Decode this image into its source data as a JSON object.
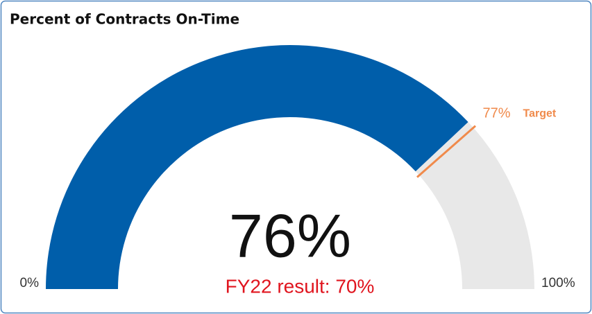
{
  "chart_data": {
    "type": "gauge",
    "title": "Percent of Contracts On-Time",
    "values": [
      76
    ],
    "value_labels": [
      "76%"
    ],
    "ylim": [
      0,
      100
    ],
    "yticks": [
      {
        "value": 0,
        "label": "0%"
      },
      {
        "value": 100,
        "label": "100%"
      }
    ],
    "target": 77,
    "target_label": "77%",
    "target_name": "Target",
    "annotation": "FY22 result: 70%",
    "color": "#005eaa",
    "track_color": "#e8e8e8",
    "target_color": "#f08a4b",
    "annotation_color": "#e0141e"
  }
}
